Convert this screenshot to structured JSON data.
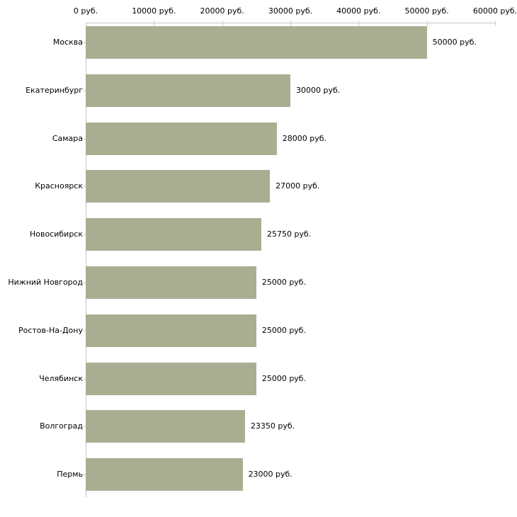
{
  "chart_data": {
    "type": "bar",
    "orientation": "horizontal",
    "title": "",
    "xlabel": "",
    "ylabel": "",
    "unit": "руб.",
    "categories": [
      "Москва",
      "Екатеринбург",
      "Самара",
      "Красноярск",
      "Новосибирск",
      "Нижний Новгород",
      "Ростов-На-Дону",
      "Челябинск",
      "Волгоград",
      "Пермь"
    ],
    "values": [
      50000,
      30000,
      28000,
      27000,
      25750,
      25000,
      25000,
      25000,
      23350,
      23000
    ],
    "value_labels": [
      "50000 руб.",
      "30000 руб.",
      "28000 руб.",
      "27000 руб.",
      "25750 руб.",
      "25000 руб.",
      "25000 руб.",
      "25000 руб.",
      "23350 руб.",
      "23000 руб."
    ],
    "x_ticks": [
      0,
      10000,
      20000,
      30000,
      40000,
      50000,
      60000
    ],
    "x_tick_labels": [
      "0 руб.",
      "10000 руб.",
      "20000 руб.",
      "30000 руб.",
      "40000 руб.",
      "50000 руб.",
      "60000 руб."
    ],
    "xlim": [
      0,
      60000
    ],
    "grid": false,
    "legend": false,
    "axis_position": "top",
    "bar_color": "#a9ae92",
    "axis_line_color": "#c6c6c6",
    "tick_color": "#d6d2bc",
    "text_color": "#000000",
    "background_color": "#ffffff"
  }
}
